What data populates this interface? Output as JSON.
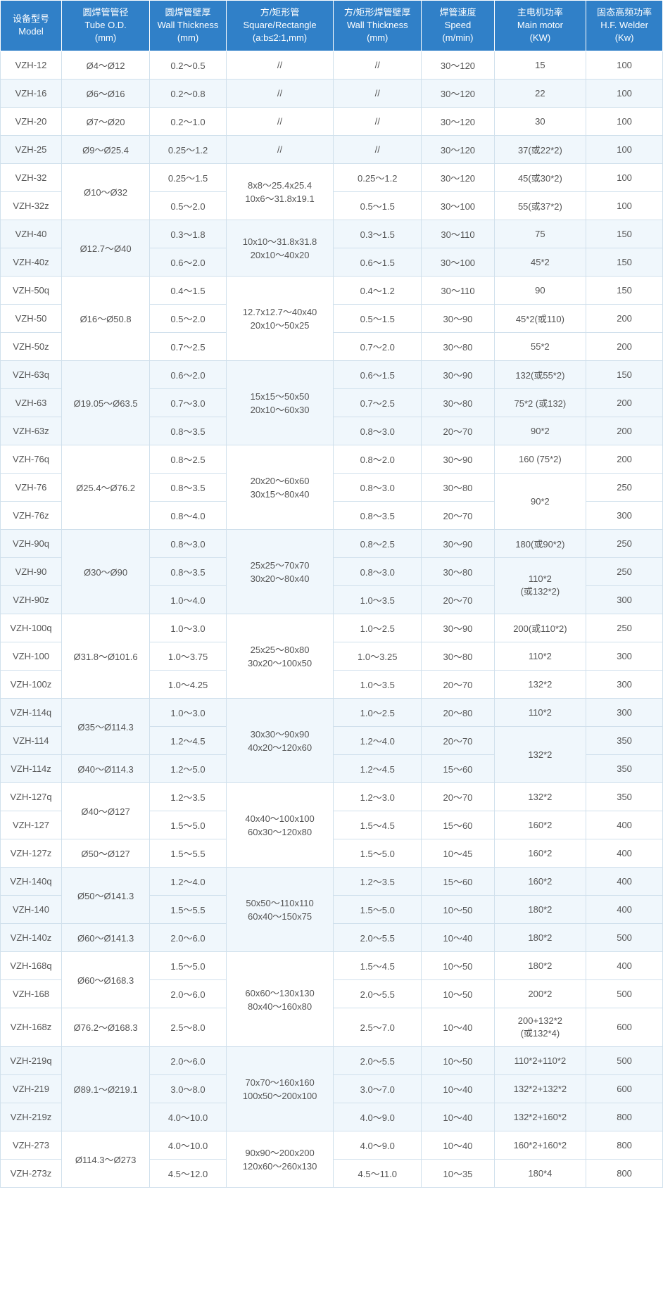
{
  "columns": [
    {
      "zh": "设备型号",
      "en": "Model"
    },
    {
      "zh": "圆焊管管径",
      "en": "Tube O.D.",
      "unit": "(mm)"
    },
    {
      "zh": "圆焊管壁厚",
      "en": "Wall Thickness",
      "unit": "(mm)"
    },
    {
      "zh": "方/矩形管",
      "en": "Square/Rectangle",
      "unit": "(a:b≤2:1,mm)"
    },
    {
      "zh": "方/矩形焊管壁厚",
      "en": "Wall Thickness",
      "unit": "(mm)"
    },
    {
      "zh": "焊管速度",
      "en": "Speed",
      "unit": "(m/min)"
    },
    {
      "zh": "主电机功率",
      "en": "Main motor",
      "unit": "(KW)"
    },
    {
      "zh": "固态高频功率",
      "en": "H.F. Welder",
      "unit": "(Kw)"
    }
  ],
  "groups": [
    {
      "tint": false,
      "rows": [
        {
          "model": "VZH-12",
          "od": "Ø4～Ø12",
          "wt": "0.2～0.5",
          "sq": "//",
          "sqwt": "//",
          "speed": "30～120",
          "motor": "15",
          "hf": "100"
        }
      ]
    },
    {
      "tint": true,
      "rows": [
        {
          "model": "VZH-16",
          "od": "Ø6～Ø16",
          "wt": "0.2～0.8",
          "sq": "//",
          "sqwt": "//",
          "speed": "30～120",
          "motor": "22",
          "hf": "100"
        }
      ]
    },
    {
      "tint": false,
      "rows": [
        {
          "model": "VZH-20",
          "od": "Ø7～Ø20",
          "wt": "0.2～1.0",
          "sq": "//",
          "sqwt": "//",
          "speed": "30～120",
          "motor": "30",
          "hf": "100"
        }
      ]
    },
    {
      "tint": true,
      "rows": [
        {
          "model": "VZH-25",
          "od": "Ø9～Ø25.4",
          "wt": "0.25～1.2",
          "sq": "//",
          "sqwt": "//",
          "speed": "30～120",
          "motor": "37(或22*2)",
          "hf": "100"
        }
      ]
    },
    {
      "tint": false,
      "od": "Ø10～Ø32",
      "sq": "8x8～25.4x25.4\n10x6～31.8x19.1",
      "rows": [
        {
          "model": "VZH-32",
          "wt": "0.25～1.5",
          "sqwt": "0.25～1.2",
          "speed": "30～120",
          "motor": "45(或30*2)",
          "hf": "100"
        },
        {
          "model": "VZH-32z",
          "wt": "0.5～2.0",
          "sqwt": "0.5～1.5",
          "speed": "30～100",
          "motor": "55(或37*2)",
          "hf": "100"
        }
      ]
    },
    {
      "tint": true,
      "od": "Ø12.7～Ø40",
      "sq": "10x10～31.8x31.8\n20x10～40x20",
      "rows": [
        {
          "model": "VZH-40",
          "wt": "0.3～1.8",
          "sqwt": "0.3～1.5",
          "speed": "30～110",
          "motor": "75",
          "hf": "150"
        },
        {
          "model": "VZH-40z",
          "wt": "0.6～2.0",
          "sqwt": "0.6～1.5",
          "speed": "30～100",
          "motor": "45*2",
          "hf": "150"
        }
      ]
    },
    {
      "tint": false,
      "od": "Ø16～Ø50.8",
      "sq": "12.7x12.7～40x40\n20x10～50x25",
      "rows": [
        {
          "model": "VZH-50q",
          "wt": "0.4～1.5",
          "sqwt": "0.4～1.2",
          "speed": "30～110",
          "motor": "90",
          "hf": "150"
        },
        {
          "model": "VZH-50",
          "wt": "0.5～2.0",
          "sqwt": "0.5～1.5",
          "speed": "30～90",
          "motor": "45*2(或110)",
          "hf": "200"
        },
        {
          "model": "VZH-50z",
          "wt": "0.7～2.5",
          "sqwt": "0.7～2.0",
          "speed": "30～80",
          "motor": "55*2",
          "hf": "200"
        }
      ]
    },
    {
      "tint": true,
      "od": "Ø19.05～Ø63.5",
      "sq": "15x15～50x50\n20x10～60x30",
      "rows": [
        {
          "model": "VZH-63q",
          "wt": "0.6～2.0",
          "sqwt": "0.6～1.5",
          "speed": "30～90",
          "motor": "132(或55*2)",
          "hf": "150"
        },
        {
          "model": "VZH-63",
          "wt": "0.7～3.0",
          "sqwt": "0.7～2.5",
          "speed": "30～80",
          "motor": "75*2 (或132)",
          "hf": "200"
        },
        {
          "model": "VZH-63z",
          "wt": "0.8～3.5",
          "sqwt": "0.8～3.0",
          "speed": "20～70",
          "motor": "90*2",
          "hf": "200"
        }
      ]
    },
    {
      "tint": false,
      "od": "Ø25.4～Ø76.2",
      "sq": "20x20～60x60\n30x15～80x40",
      "motorSpans": [
        {
          "start": 1,
          "span": 2,
          "text": "90*2"
        }
      ],
      "rows": [
        {
          "model": "VZH-76q",
          "wt": "0.8～2.5",
          "sqwt": "0.8～2.0",
          "speed": "30～90",
          "motor": "160 (75*2)",
          "hf": "200"
        },
        {
          "model": "VZH-76",
          "wt": "0.8～3.5",
          "sqwt": "0.8～3.0",
          "speed": "30～80",
          "hf": "250"
        },
        {
          "model": "VZH-76z",
          "wt": "0.8～4.0",
          "sqwt": "0.8～3.5",
          "speed": "20～70",
          "hf": "300"
        }
      ]
    },
    {
      "tint": true,
      "od": "Ø30～Ø90",
      "sq": "25x25～70x70\n30x20～80x40",
      "motorSpans": [
        {
          "start": 1,
          "span": 2,
          "text": "110*2\n(或132*2)"
        }
      ],
      "rows": [
        {
          "model": "VZH-90q",
          "wt": "0.8～3.0",
          "sqwt": "0.8～2.5",
          "speed": "30～90",
          "motor": "180(或90*2)",
          "hf": "250"
        },
        {
          "model": "VZH-90",
          "wt": "0.8～3.5",
          "sqwt": "0.8～3.0",
          "speed": "30～80",
          "hf": "250"
        },
        {
          "model": "VZH-90z",
          "wt": "1.0～4.0",
          "sqwt": "1.0～3.5",
          "speed": "20～70",
          "hf": "300"
        }
      ]
    },
    {
      "tint": false,
      "od": "Ø31.8～Ø101.6",
      "sq": "25x25～80x80\n30x20～100x50",
      "rows": [
        {
          "model": "VZH-100q",
          "wt": "1.0～3.0",
          "sqwt": "1.0～2.5",
          "speed": "30～90",
          "motor": "200(或110*2)",
          "hf": "250"
        },
        {
          "model": "VZH-100",
          "wt": "1.0～3.75",
          "sqwt": "1.0～3.25",
          "speed": "30～80",
          "motor": "110*2",
          "hf": "300"
        },
        {
          "model": "VZH-100z",
          "wt": "1.0～4.25",
          "sqwt": "1.0～3.5",
          "speed": "20～70",
          "motor": "132*2",
          "hf": "300"
        }
      ]
    },
    {
      "tint": true,
      "sq": "30x30～90x90\n40x20～120x60",
      "odPerRow": [
        "Ø35～Ø114.3",
        null,
        "Ø40～Ø114.3"
      ],
      "odSpans": [
        2,
        0,
        1
      ],
      "motorSpans": [
        {
          "start": 1,
          "span": 2,
          "text": "132*2"
        }
      ],
      "rows": [
        {
          "model": "VZH-114q",
          "wt": "1.0～3.0",
          "sqwt": "1.0～2.5",
          "speed": "20～80",
          "motor": "110*2",
          "hf": "300"
        },
        {
          "model": "VZH-114",
          "wt": "1.2～4.5",
          "sqwt": "1.2～4.0",
          "speed": "20～70",
          "hf": "350"
        },
        {
          "model": "VZH-114z",
          "wt": "1.2～5.0",
          "sqwt": "1.2～4.5",
          "speed": "15～60",
          "hf": "350"
        }
      ]
    },
    {
      "tint": false,
      "sq": "40x40～100x100\n60x30～120x80",
      "odPerRow": [
        "Ø40～Ø127",
        null,
        "Ø50～Ø127"
      ],
      "odSpans": [
        2,
        0,
        1
      ],
      "rows": [
        {
          "model": "VZH-127q",
          "wt": "1.2～3.5",
          "sqwt": "1.2～3.0",
          "speed": "20～70",
          "motor": "132*2",
          "hf": "350"
        },
        {
          "model": "VZH-127",
          "wt": "1.5～5.0",
          "sqwt": "1.5～4.5",
          "speed": "15～60",
          "motor": "160*2",
          "hf": "400"
        },
        {
          "model": "VZH-127z",
          "wt": "1.5～5.5",
          "sqwt": "1.5～5.0",
          "speed": "10～45",
          "motor": "160*2",
          "hf": "400"
        }
      ]
    },
    {
      "tint": true,
      "sq": "50x50～110x110\n60x40～150x75",
      "odPerRow": [
        "Ø50～Ø141.3",
        null,
        "Ø60～Ø141.3"
      ],
      "odSpans": [
        2,
        0,
        1
      ],
      "rows": [
        {
          "model": "VZH-140q",
          "wt": "1.2～4.0",
          "sqwt": "1.2～3.5",
          "speed": "15～60",
          "motor": "160*2",
          "hf": "400"
        },
        {
          "model": "VZH-140",
          "wt": "1.5～5.5",
          "sqwt": "1.5～5.0",
          "speed": "10～50",
          "motor": "180*2",
          "hf": "400"
        },
        {
          "model": "VZH-140z",
          "wt": "2.0～6.0",
          "sqwt": "2.0～5.5",
          "speed": "10～40",
          "motor": "180*2",
          "hf": "500"
        }
      ]
    },
    {
      "tint": false,
      "sq": "60x60～130x130\n80x40～160x80",
      "odPerRow": [
        "Ø60～Ø168.3",
        null,
        "Ø76.2～Ø168.3"
      ],
      "odSpans": [
        2,
        0,
        1
      ],
      "rows": [
        {
          "model": "VZH-168q",
          "wt": "1.5～5.0",
          "sqwt": "1.5～4.5",
          "speed": "10～50",
          "motor": "180*2",
          "hf": "400"
        },
        {
          "model": "VZH-168",
          "wt": "2.0～6.0",
          "sqwt": "2.0～5.5",
          "speed": "10～50",
          "motor": "200*2",
          "hf": "500"
        },
        {
          "model": "VZH-168z",
          "wt": "2.5～8.0",
          "sqwt": "2.5～7.0",
          "speed": "10～40",
          "motor": "200+132*2\n(或132*4)",
          "hf": "600"
        }
      ]
    },
    {
      "tint": true,
      "od": "Ø89.1～Ø219.1",
      "sq": "70x70～160x160\n100x50～200x100",
      "rows": [
        {
          "model": "VZH-219q",
          "wt": "2.0～6.0",
          "sqwt": "2.0～5.5",
          "speed": "10～50",
          "motor": "110*2+110*2",
          "hf": "500"
        },
        {
          "model": "VZH-219",
          "wt": "3.0～8.0",
          "sqwt": "3.0～7.0",
          "speed": "10～40",
          "motor": "132*2+132*2",
          "hf": "600"
        },
        {
          "model": "VZH-219z",
          "wt": "4.0～10.0",
          "sqwt": "4.0～9.0",
          "speed": "10～40",
          "motor": "132*2+160*2",
          "hf": "800"
        }
      ]
    },
    {
      "tint": false,
      "od": "Ø114.3～Ø273",
      "sq": "90x90～200x200\n120x60～260x130",
      "rows": [
        {
          "model": "VZH-273",
          "wt": "4.0～10.0",
          "sqwt": "4.0～9.0",
          "speed": "10～40",
          "motor": "160*2+160*2",
          "hf": "800"
        },
        {
          "model": "VZH-273z",
          "wt": "4.5～12.0",
          "sqwt": "4.5～11.0",
          "speed": "10～35",
          "motor": "180*4",
          "hf": "800"
        }
      ]
    }
  ]
}
